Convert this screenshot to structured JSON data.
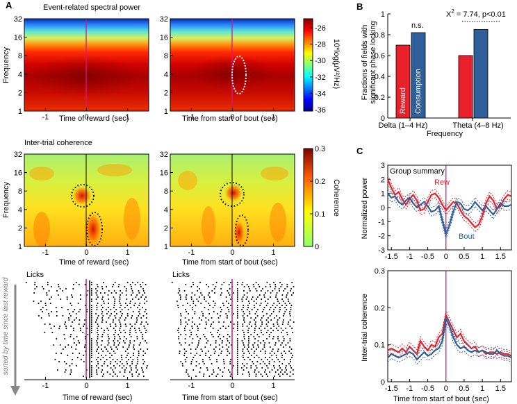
{
  "panels": {
    "A": "A",
    "B": "B",
    "C": "C"
  },
  "colors": {
    "red": "#e8202a",
    "blue": "#2f5f9a",
    "magenta": "#d4148c"
  },
  "a_top": {
    "title": "Event-related spectral power",
    "ylabel": "Frequency",
    "yticks": [
      "32",
      "16",
      "8",
      "4",
      "2",
      "1"
    ],
    "xticks": [
      "-1",
      "0",
      "1"
    ],
    "xlabel_left": "Time of reward (sec)",
    "xlabel_right": "Time from start of bout (sec)",
    "colorbar_ticks": [
      "-26",
      "-28",
      "-30",
      "-32",
      "-34",
      "-36"
    ],
    "colorbar_label": "10*log(μV²/Hz)"
  },
  "a_mid": {
    "title": "Inter-trial coherence",
    "ylabel": "Frequency",
    "yticks": [
      "32",
      "16",
      "8",
      "4",
      "2",
      "1"
    ],
    "xticks": [
      "-1",
      "0",
      "1"
    ],
    "xlabel_left": "Time of reward (sec)",
    "xlabel_right": "Time from start of bout (sec)",
    "colorbar_ticks": [
      "0.3",
      "0.2",
      "0.1",
      "0"
    ],
    "colorbar_label": "Coherence"
  },
  "a_bot": {
    "label": "Licks",
    "sort_label": "sorted by time since last reward",
    "xticks": [
      "-1",
      "0",
      "1"
    ],
    "xlabel_left": "Time of reward (sec)",
    "xlabel_right": "Time from start of bout (sec)"
  },
  "chart_data": [
    {
      "type": "bar",
      "title": "",
      "ylabel": "Fractions of fields with significant phase locking",
      "xlabel": "Frequency",
      "categories": [
        "Delta (1–4 Hz)",
        "Theta (4–8 Hz)"
      ],
      "series": [
        {
          "name": "Reward",
          "values": [
            0.7,
            0.6
          ]
        },
        {
          "name": "Consumption",
          "values": [
            0.82,
            0.85
          ]
        }
      ],
      "ylim": [
        0,
        1
      ],
      "yticks": [
        "0",
        "0.2",
        "0.4",
        "0.6",
        "0.8",
        "1"
      ],
      "annotations": [
        "n.s.",
        "X² = 7.74, p<0.01"
      ]
    },
    {
      "type": "line",
      "title": "Group summary",
      "ylabel": "Normalized power",
      "xlabel": "",
      "ylim": [
        -3,
        3
      ],
      "xlim": [
        -1.6,
        1.8
      ],
      "yticks": [
        "3",
        "2",
        "1",
        "0",
        "-1",
        "-2",
        "-3"
      ],
      "xticks": [
        "-1.5",
        "-1",
        "-0.5",
        "0",
        "0.5",
        "1",
        "1.5"
      ],
      "series": [
        {
          "name": "Rew",
          "x": [
            -1.6,
            -1.5,
            -1.4,
            -1.3,
            -1.2,
            -1.1,
            -1.0,
            -0.9,
            -0.8,
            -0.7,
            -0.6,
            -0.5,
            -0.4,
            -0.3,
            -0.2,
            -0.1,
            0.0,
            0.1,
            0.2,
            0.3,
            0.4,
            0.5,
            0.6,
            0.7,
            0.8,
            0.9,
            1.0,
            1.1,
            1.2,
            1.3,
            1.4,
            1.5,
            1.6,
            1.7,
            1.8
          ],
          "y": [
            2.0,
            1.4,
            0.9,
            1.1,
            0.6,
            0.2,
            0.6,
            0.9,
            0.5,
            -0.2,
            -0.1,
            0.4,
            0.9,
            1.0,
            0.7,
            0.2,
            -0.2,
            0.1,
            0.4,
            0.3,
            -0.2,
            -0.6,
            -0.8,
            -1.1,
            -1.4,
            -1.2,
            -0.6,
            0.3,
            0.8,
            0.5,
            -0.1,
            0.1,
            0.6,
            0.9,
            0.8
          ]
        },
        {
          "name": "Bout",
          "x": [
            -1.6,
            -1.5,
            -1.4,
            -1.3,
            -1.2,
            -1.1,
            -1.0,
            -0.9,
            -0.8,
            -0.7,
            -0.6,
            -0.5,
            -0.4,
            -0.3,
            -0.2,
            -0.1,
            0.0,
            0.1,
            0.2,
            0.3,
            0.4,
            0.5,
            0.6,
            0.7,
            0.8,
            0.9,
            1.0,
            1.1,
            1.2,
            1.3,
            1.4,
            1.5,
            1.6,
            1.7,
            1.8
          ],
          "y": [
            1.0,
            0.7,
            0.8,
            0.4,
            0.2,
            0.5,
            0.7,
            0.3,
            0.0,
            0.2,
            0.4,
            0.1,
            -0.3,
            -0.2,
            0.1,
            -0.9,
            -1.9,
            -1.2,
            -0.3,
            0.4,
            0.3,
            -0.1,
            -0.2,
            0.0,
            0.4,
            0.1,
            -0.2,
            0.1,
            -0.2,
            -0.5,
            -0.1,
            0.3,
            0.1,
            0.1,
            0.2
          ]
        }
      ]
    },
    {
      "type": "line",
      "title": "",
      "ylabel": "Inter-trial coherence",
      "xlabel": "Time from start of bout (sec)",
      "ylim": [
        0,
        0.3
      ],
      "xlim": [
        -1.6,
        1.8
      ],
      "yticks": [
        "0.3",
        "0.2",
        "0.1",
        "0"
      ],
      "xticks": [
        "-1.5",
        "-1",
        "-0.5",
        "0",
        "0.5",
        "1",
        "1.5"
      ],
      "series": [
        {
          "name": "Rew",
          "x": [
            -1.6,
            -1.5,
            -1.4,
            -1.3,
            -1.2,
            -1.1,
            -1.0,
            -0.9,
            -0.8,
            -0.7,
            -0.6,
            -0.5,
            -0.4,
            -0.3,
            -0.2,
            -0.1,
            0.0,
            0.1,
            0.2,
            0.3,
            0.4,
            0.5,
            0.6,
            0.7,
            0.8,
            0.9,
            1.0,
            1.1,
            1.2,
            1.3,
            1.4,
            1.5,
            1.6,
            1.7,
            1.8
          ],
          "y": [
            0.085,
            0.09,
            0.085,
            0.08,
            0.09,
            0.08,
            0.095,
            0.085,
            0.075,
            0.11,
            0.095,
            0.085,
            0.1,
            0.095,
            0.12,
            0.13,
            0.18,
            0.16,
            0.14,
            0.12,
            0.13,
            0.11,
            0.1,
            0.09,
            0.095,
            0.08,
            0.085,
            0.075,
            0.08,
            0.08,
            0.075,
            0.08,
            0.075,
            0.075,
            0.07
          ]
        },
        {
          "name": "Bout",
          "x": [
            -1.6,
            -1.5,
            -1.4,
            -1.3,
            -1.2,
            -1.1,
            -1.0,
            -0.9,
            -0.8,
            -0.7,
            -0.6,
            -0.5,
            -0.4,
            -0.3,
            -0.2,
            -0.1,
            0.0,
            0.1,
            0.2,
            0.3,
            0.4,
            0.5,
            0.6,
            0.7,
            0.8,
            0.9,
            1.0,
            1.1,
            1.2,
            1.3,
            1.4,
            1.5,
            1.6,
            1.7,
            1.8
          ],
          "y": [
            0.065,
            0.075,
            0.07,
            0.065,
            0.07,
            0.075,
            0.08,
            0.075,
            0.06,
            0.07,
            0.08,
            0.07,
            0.075,
            0.085,
            0.09,
            0.11,
            0.17,
            0.15,
            0.12,
            0.1,
            0.09,
            0.095,
            0.085,
            0.08,
            0.085,
            0.08,
            0.085,
            0.08,
            0.075,
            0.075,
            0.085,
            0.075,
            0.07,
            0.07,
            0.065
          ]
        }
      ]
    }
  ],
  "b_legend": {
    "reward": "Reward",
    "consumption": "Consumption"
  },
  "b_ylabel_line1": "Fractions of fields with",
  "b_ylabel_line2": "significant phase locking",
  "b_ns": "n.s.",
  "b_stat_chi": "X",
  "b_stat_sup": "2",
  "b_stat_rest": " = 7.74, p<0.01",
  "c_rew_label": "Rew",
  "c_bout_label": "Bout"
}
